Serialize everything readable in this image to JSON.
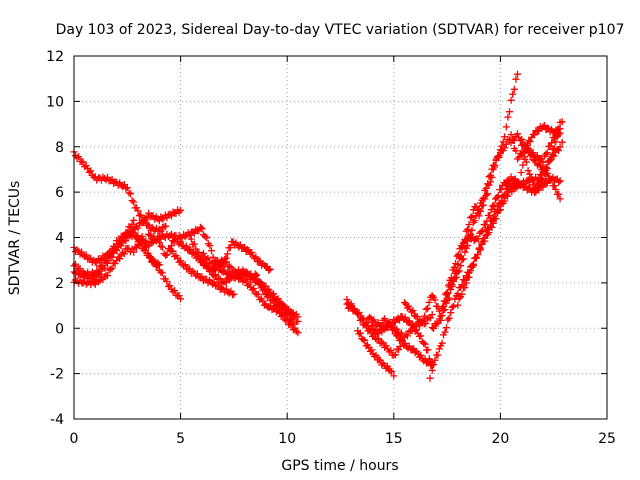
{
  "chart_data": {
    "type": "scatter",
    "title": "Day 103 of 2023, Sidereal Day-to-day VTEC variation (SDTVAR) for receiver p107",
    "xlabel": "GPS time / hours",
    "ylabel": "SDTVAR / TECUs",
    "xlim": [
      0,
      25
    ],
    "ylim": [
      -4,
      12
    ],
    "xticks": [
      0,
      5,
      10,
      15,
      20,
      25
    ],
    "yticks": [
      -4,
      -2,
      0,
      2,
      4,
      6,
      8,
      10,
      12
    ],
    "grid": true,
    "marker": "plus",
    "color": "#ff0000",
    "series": [
      {
        "points": [
          [
            0.0,
            7.7
          ],
          [
            0.5,
            7.2
          ],
          [
            1.0,
            6.6
          ],
          [
            1.5,
            6.6
          ],
          [
            2.0,
            6.4
          ],
          [
            2.5,
            6.2
          ],
          [
            2.8,
            5.5
          ],
          [
            3.2,
            4.8
          ],
          [
            3.6,
            4.4
          ],
          [
            4.0,
            4.3
          ],
          [
            4.3,
            4.5
          ]
        ]
      },
      {
        "points": [
          [
            0.0,
            3.5
          ],
          [
            0.5,
            3.2
          ],
          [
            1.0,
            2.9
          ],
          [
            1.5,
            3.2
          ],
          [
            2.0,
            3.5
          ],
          [
            2.5,
            4.0
          ],
          [
            3.0,
            4.5
          ],
          [
            3.5,
            5.0
          ],
          [
            4.0,
            4.8
          ],
          [
            4.5,
            5.0
          ],
          [
            5.0,
            5.2
          ]
        ]
      },
      {
        "points": [
          [
            0.0,
            2.5
          ],
          [
            0.5,
            2.3
          ],
          [
            1.0,
            2.2
          ],
          [
            1.5,
            2.8
          ],
          [
            2.0,
            3.5
          ],
          [
            2.5,
            4.3
          ],
          [
            2.8,
            4.7
          ],
          [
            3.0,
            3.8
          ],
          [
            3.5,
            3.2
          ],
          [
            4.0,
            2.6
          ],
          [
            4.5,
            1.8
          ],
          [
            5.0,
            1.3
          ]
        ]
      },
      {
        "points": [
          [
            0.0,
            2.1
          ],
          [
            0.5,
            2.0
          ],
          [
            1.0,
            2.0
          ],
          [
            1.5,
            2.3
          ],
          [
            2.0,
            3.0
          ],
          [
            2.5,
            3.5
          ],
          [
            2.8,
            3.4
          ],
          [
            3.2,
            4.0
          ],
          [
            3.6,
            3.0
          ],
          [
            4.0,
            2.8
          ]
        ]
      },
      {
        "points": [
          [
            0.0,
            2.8
          ],
          [
            0.5,
            2.4
          ],
          [
            1.0,
            2.4
          ],
          [
            1.5,
            3.0
          ],
          [
            2.0,
            3.8
          ],
          [
            2.5,
            4.2
          ],
          [
            3.0,
            4.0
          ],
          [
            3.5,
            3.7
          ],
          [
            4.0,
            4.0
          ],
          [
            4.5,
            4.1
          ],
          [
            5.0,
            4.0
          ],
          [
            5.5,
            4.2
          ],
          [
            6.0,
            4.4
          ]
        ]
      },
      {
        "points": [
          [
            3.5,
            4.1
          ],
          [
            4.0,
            3.8
          ],
          [
            4.3,
            3.2
          ],
          [
            4.7,
            3.9
          ],
          [
            5.2,
            3.6
          ],
          [
            5.6,
            3.3
          ],
          [
            6.0,
            2.9
          ],
          [
            6.5,
            2.5
          ],
          [
            7.0,
            3.0
          ],
          [
            7.5,
            2.5
          ],
          [
            8.0,
            2.5
          ],
          [
            8.5,
            2.2
          ],
          [
            9.0,
            1.6
          ],
          [
            9.5,
            1.2
          ],
          [
            10.0,
            0.8
          ],
          [
            10.5,
            0.5
          ]
        ]
      },
      {
        "points": [
          [
            6.0,
            4.3
          ],
          [
            6.3,
            3.8
          ],
          [
            6.6,
            3.0
          ],
          [
            7.0,
            2.8
          ],
          [
            7.4,
            3.8
          ],
          [
            7.8,
            3.6
          ],
          [
            8.2,
            3.4
          ],
          [
            8.6,
            3.0
          ],
          [
            9.0,
            2.7
          ],
          [
            9.2,
            2.6
          ]
        ]
      },
      {
        "points": [
          [
            5.5,
            3.9
          ],
          [
            6.0,
            3.0
          ],
          [
            6.5,
            2.4
          ],
          [
            7.0,
            2.0
          ],
          [
            7.5,
            2.3
          ],
          [
            8.0,
            2.4
          ],
          [
            8.5,
            2.1
          ],
          [
            9.0,
            1.8
          ],
          [
            9.5,
            1.3
          ],
          [
            10.0,
            0.8
          ],
          [
            10.5,
            0.3
          ]
        ]
      },
      {
        "points": [
          [
            4.5,
            3.5
          ],
          [
            5.0,
            2.9
          ],
          [
            5.5,
            2.5
          ],
          [
            6.0,
            2.2
          ],
          [
            6.5,
            2.0
          ],
          [
            7.0,
            1.7
          ],
          [
            7.5,
            1.5
          ]
        ]
      },
      {
        "points": [
          [
            6.0,
            3.3
          ],
          [
            6.5,
            2.8
          ],
          [
            7.0,
            2.5
          ],
          [
            7.5,
            2.3
          ],
          [
            8.0,
            2.1
          ],
          [
            8.5,
            1.6
          ],
          [
            9.0,
            1.0
          ],
          [
            9.5,
            0.8
          ],
          [
            10.0,
            0.3
          ],
          [
            10.5,
            -0.2
          ]
        ]
      },
      {
        "points": [
          [
            8.5,
            2.4
          ],
          [
            9.0,
            1.5
          ],
          [
            9.5,
            1.0
          ],
          [
            10.0,
            0.5
          ],
          [
            10.3,
            0.2
          ]
        ]
      },
      {
        "points": [
          [
            12.8,
            1.2
          ],
          [
            13.2,
            0.8
          ],
          [
            13.5,
            0.3
          ],
          [
            14.0,
            -0.3
          ],
          [
            14.5,
            -0.7
          ],
          [
            15.0,
            -1.2
          ],
          [
            15.3,
            -0.8
          ]
        ]
      },
      {
        "points": [
          [
            12.8,
            1.0
          ],
          [
            13.3,
            0.7
          ],
          [
            13.8,
            0.1
          ],
          [
            14.3,
            -0.2
          ],
          [
            14.8,
            0.2
          ],
          [
            15.2,
            -0.4
          ],
          [
            15.6,
            -0.8
          ],
          [
            16.0,
            -1.0
          ],
          [
            16.4,
            -1.4
          ],
          [
            16.8,
            -1.6
          ]
        ]
      },
      {
        "points": [
          [
            13.3,
            -0.1
          ],
          [
            13.7,
            -0.7
          ],
          [
            14.1,
            -1.2
          ],
          [
            14.5,
            -1.6
          ],
          [
            14.9,
            -1.9
          ],
          [
            15.0,
            -2.1
          ]
        ]
      },
      {
        "points": [
          [
            13.8,
            0.5
          ],
          [
            14.2,
            0.2
          ],
          [
            14.6,
            0.0
          ],
          [
            15.0,
            0.3
          ],
          [
            15.4,
            0.5
          ],
          [
            15.8,
            0.2
          ],
          [
            16.2,
            -0.3
          ],
          [
            16.6,
            -1.0
          ],
          [
            16.8,
            -1.8
          ],
          [
            16.7,
            -2.2
          ]
        ]
      },
      {
        "points": [
          [
            14.5,
            0.4
          ],
          [
            15.0,
            0.0
          ],
          [
            15.5,
            -0.4
          ],
          [
            16.0,
            0.1
          ],
          [
            16.5,
            0.3
          ],
          [
            16.8,
            0.6
          ]
        ]
      },
      {
        "points": [
          [
            15.5,
            1.1
          ],
          [
            15.9,
            0.7
          ],
          [
            16.3,
            0.2
          ],
          [
            16.8,
            1.5
          ],
          [
            17.2,
            0.6
          ],
          [
            17.6,
            1.8
          ],
          [
            18.0,
            2.4
          ],
          [
            18.4,
            3.5
          ],
          [
            18.8,
            4.8
          ],
          [
            19.2,
            5.8
          ],
          [
            19.6,
            7.0
          ],
          [
            20.0,
            7.8
          ],
          [
            20.2,
            8.5
          ],
          [
            20.5,
            10.0
          ],
          [
            20.8,
            11.2
          ]
        ]
      },
      {
        "points": [
          [
            16.8,
            -1.7
          ],
          [
            17.2,
            -0.8
          ],
          [
            17.6,
            0.5
          ],
          [
            18.0,
            1.6
          ],
          [
            18.4,
            2.3
          ],
          [
            18.8,
            3.0
          ],
          [
            19.2,
            3.8
          ],
          [
            19.6,
            4.5
          ],
          [
            20.0,
            5.3
          ],
          [
            20.4,
            6.0
          ],
          [
            20.8,
            6.3
          ],
          [
            21.3,
            6.5
          ],
          [
            21.8,
            6.6
          ],
          [
            22.3,
            7.4
          ],
          [
            22.8,
            8.0
          ]
        ]
      },
      {
        "points": [
          [
            16.8,
            0.0
          ],
          [
            17.2,
            0.4
          ],
          [
            17.6,
            1.4
          ],
          [
            18.0,
            2.8
          ],
          [
            18.4,
            4.2
          ],
          [
            18.8,
            5.4
          ],
          [
            19.0,
            5.0
          ],
          [
            19.4,
            6.0
          ],
          [
            19.8,
            7.4
          ],
          [
            20.2,
            8.0
          ],
          [
            20.5,
            8.5
          ],
          [
            20.8,
            7.5
          ],
          [
            21.2,
            7.9
          ],
          [
            21.6,
            7.4
          ],
          [
            22.0,
            7.0
          ],
          [
            22.4,
            6.5
          ],
          [
            22.8,
            5.7
          ]
        ]
      },
      {
        "points": [
          [
            17.3,
            1.0
          ],
          [
            17.7,
            2.3
          ],
          [
            18.1,
            3.5
          ],
          [
            18.5,
            4.0
          ],
          [
            18.9,
            3.9
          ],
          [
            19.3,
            4.6
          ],
          [
            19.7,
            5.5
          ],
          [
            20.1,
            6.3
          ],
          [
            20.5,
            6.6
          ],
          [
            20.9,
            6.4
          ],
          [
            21.2,
            8.0
          ],
          [
            21.6,
            8.6
          ],
          [
            22.0,
            8.9
          ],
          [
            22.4,
            8.7
          ],
          [
            22.8,
            8.6
          ]
        ]
      },
      {
        "points": [
          [
            18.0,
            1.1
          ],
          [
            18.4,
            2.0
          ],
          [
            18.8,
            3.0
          ],
          [
            19.2,
            3.9
          ],
          [
            19.6,
            4.8
          ],
          [
            20.0,
            5.6
          ],
          [
            20.4,
            6.3
          ],
          [
            20.8,
            6.4
          ],
          [
            21.2,
            6.2
          ],
          [
            21.6,
            6.0
          ],
          [
            22.0,
            6.3
          ],
          [
            22.4,
            6.6
          ],
          [
            22.8,
            6.5
          ]
        ]
      },
      {
        "points": [
          [
            20.5,
            8.2
          ],
          [
            20.8,
            8.5
          ],
          [
            21.2,
            8.0
          ],
          [
            21.6,
            7.6
          ],
          [
            22.0,
            7.4
          ],
          [
            22.4,
            8.2
          ],
          [
            22.8,
            9.0
          ],
          [
            22.9,
            8.2
          ]
        ]
      },
      {
        "points": [
          [
            21.0,
            8.0
          ],
          [
            21.3,
            7.0
          ],
          [
            21.6,
            6.2
          ],
          [
            22.0,
            6.6
          ],
          [
            22.4,
            7.6
          ],
          [
            22.8,
            8.8
          ],
          [
            22.9,
            9.1
          ]
        ]
      }
    ]
  }
}
